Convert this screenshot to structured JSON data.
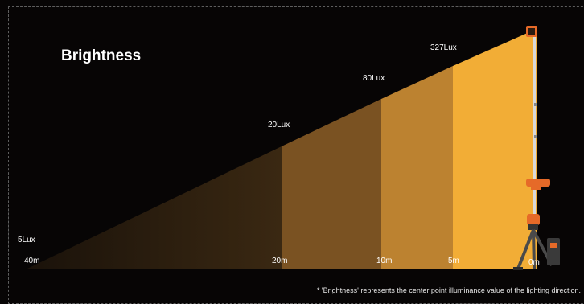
{
  "title": "Brightness",
  "zones": [
    {
      "lux": "5Lux",
      "dist": "40m",
      "color": "#3a2812"
    },
    {
      "lux": "20Lux",
      "dist": "20m",
      "color": "#7a5222"
    },
    {
      "lux": "80Lux",
      "dist": "10m",
      "color": "#bc8230"
    },
    {
      "lux": "327Lux",
      "dist": "5m",
      "color": "#f2ad36"
    },
    {
      "dist": "0m"
    }
  ],
  "note": "* 'Brightness' represents the center point illuminance value of the lighting direction.",
  "colors": {
    "background": "#070505",
    "pole": "#d9d9d9",
    "lamp_accent": "#e66a28"
  },
  "icons": {
    "work_light": "tripod-work-light-icon"
  }
}
